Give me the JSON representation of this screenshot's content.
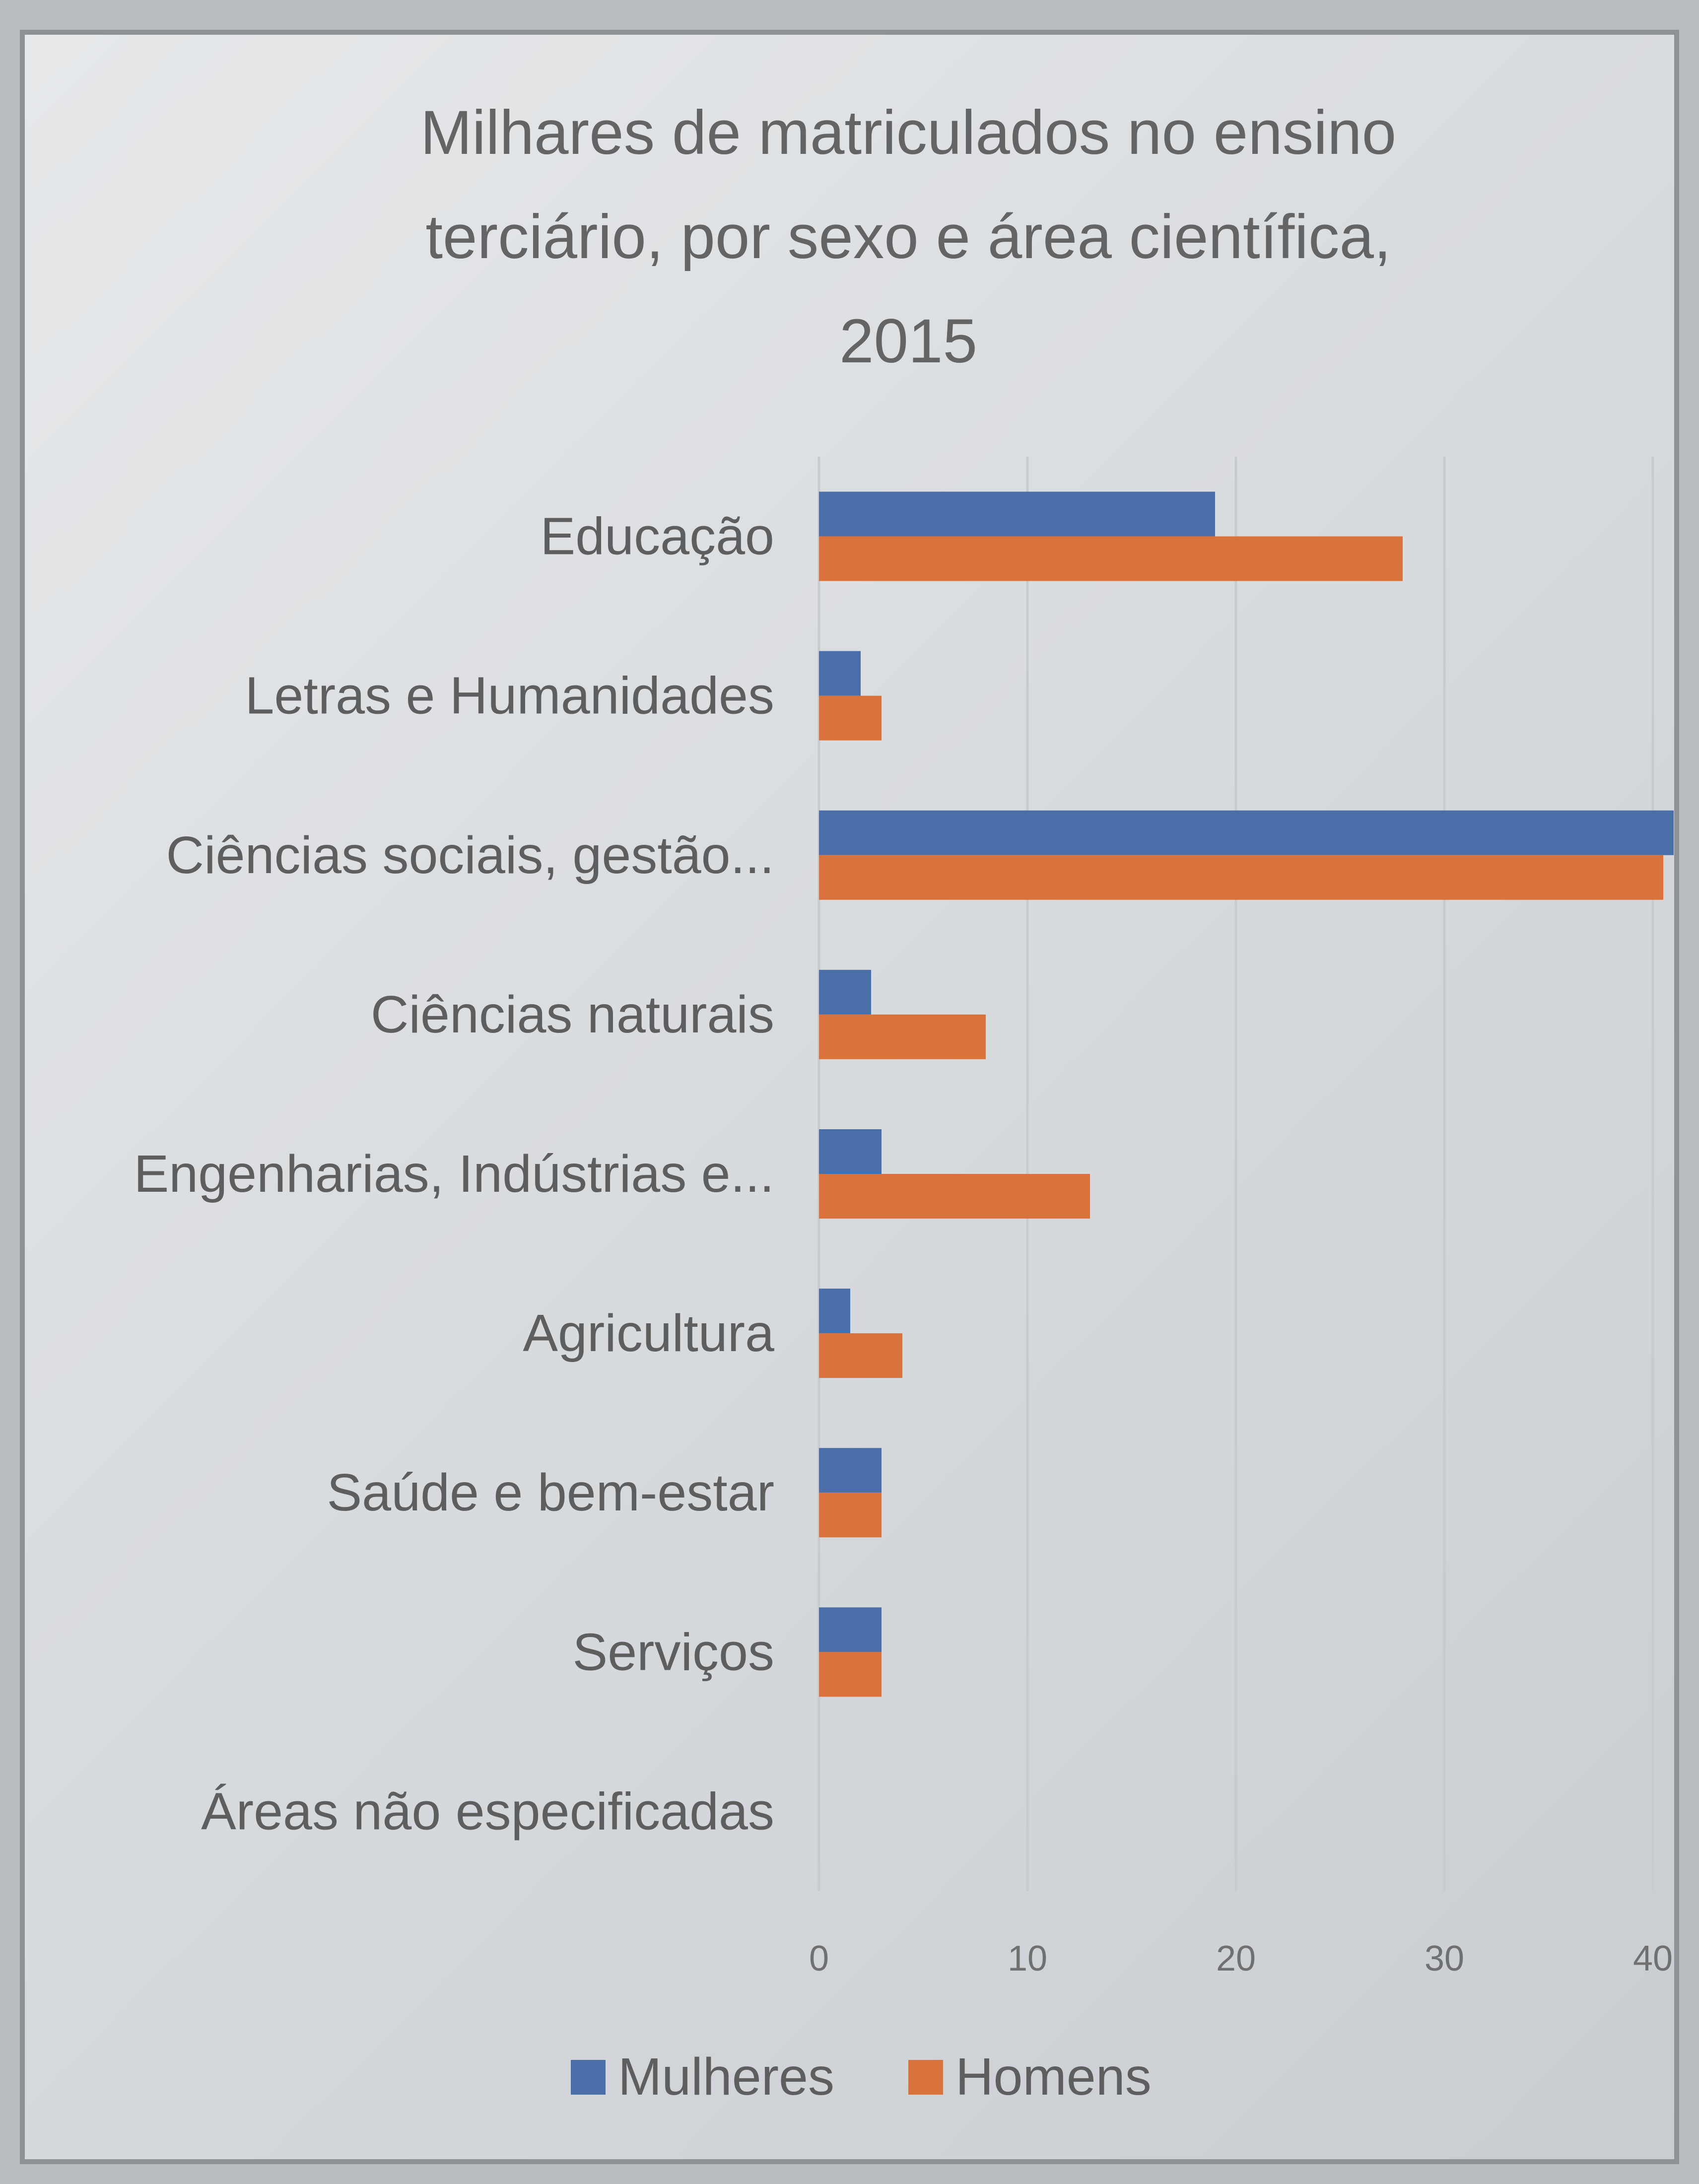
{
  "chart_data": {
    "type": "bar",
    "orientation": "horizontal",
    "title": "Milhares de matriculados no ensino terciário, por sexo e área científica, 2015",
    "title_lines": [
      "Milhares de matriculados no ensino",
      "terciário, por sexo e área científica,",
      "2015"
    ],
    "categories": [
      "Educação",
      "Letras e Humanidades",
      "Ciências sociais, gestão...",
      "Ciências naturais",
      "Engenharias, Indústrias e...",
      "Agricultura",
      "Saúde e bem-estar",
      "Serviços",
      "Áreas não especificadas"
    ],
    "series": [
      {
        "name": "Mulheres",
        "color": "#4a6ea8",
        "values": [
          19,
          2,
          41,
          2.5,
          3,
          1.5,
          3,
          3,
          0
        ]
      },
      {
        "name": "Homens",
        "color": "#d9733b",
        "values": [
          28,
          3,
          40.5,
          8,
          13,
          4,
          3,
          3,
          0
        ]
      }
    ],
    "xlim": [
      0,
      40
    ],
    "xticks": [
      "0",
      "10",
      "20",
      "30",
      "40"
    ],
    "grid": true,
    "legend": "bottom"
  }
}
